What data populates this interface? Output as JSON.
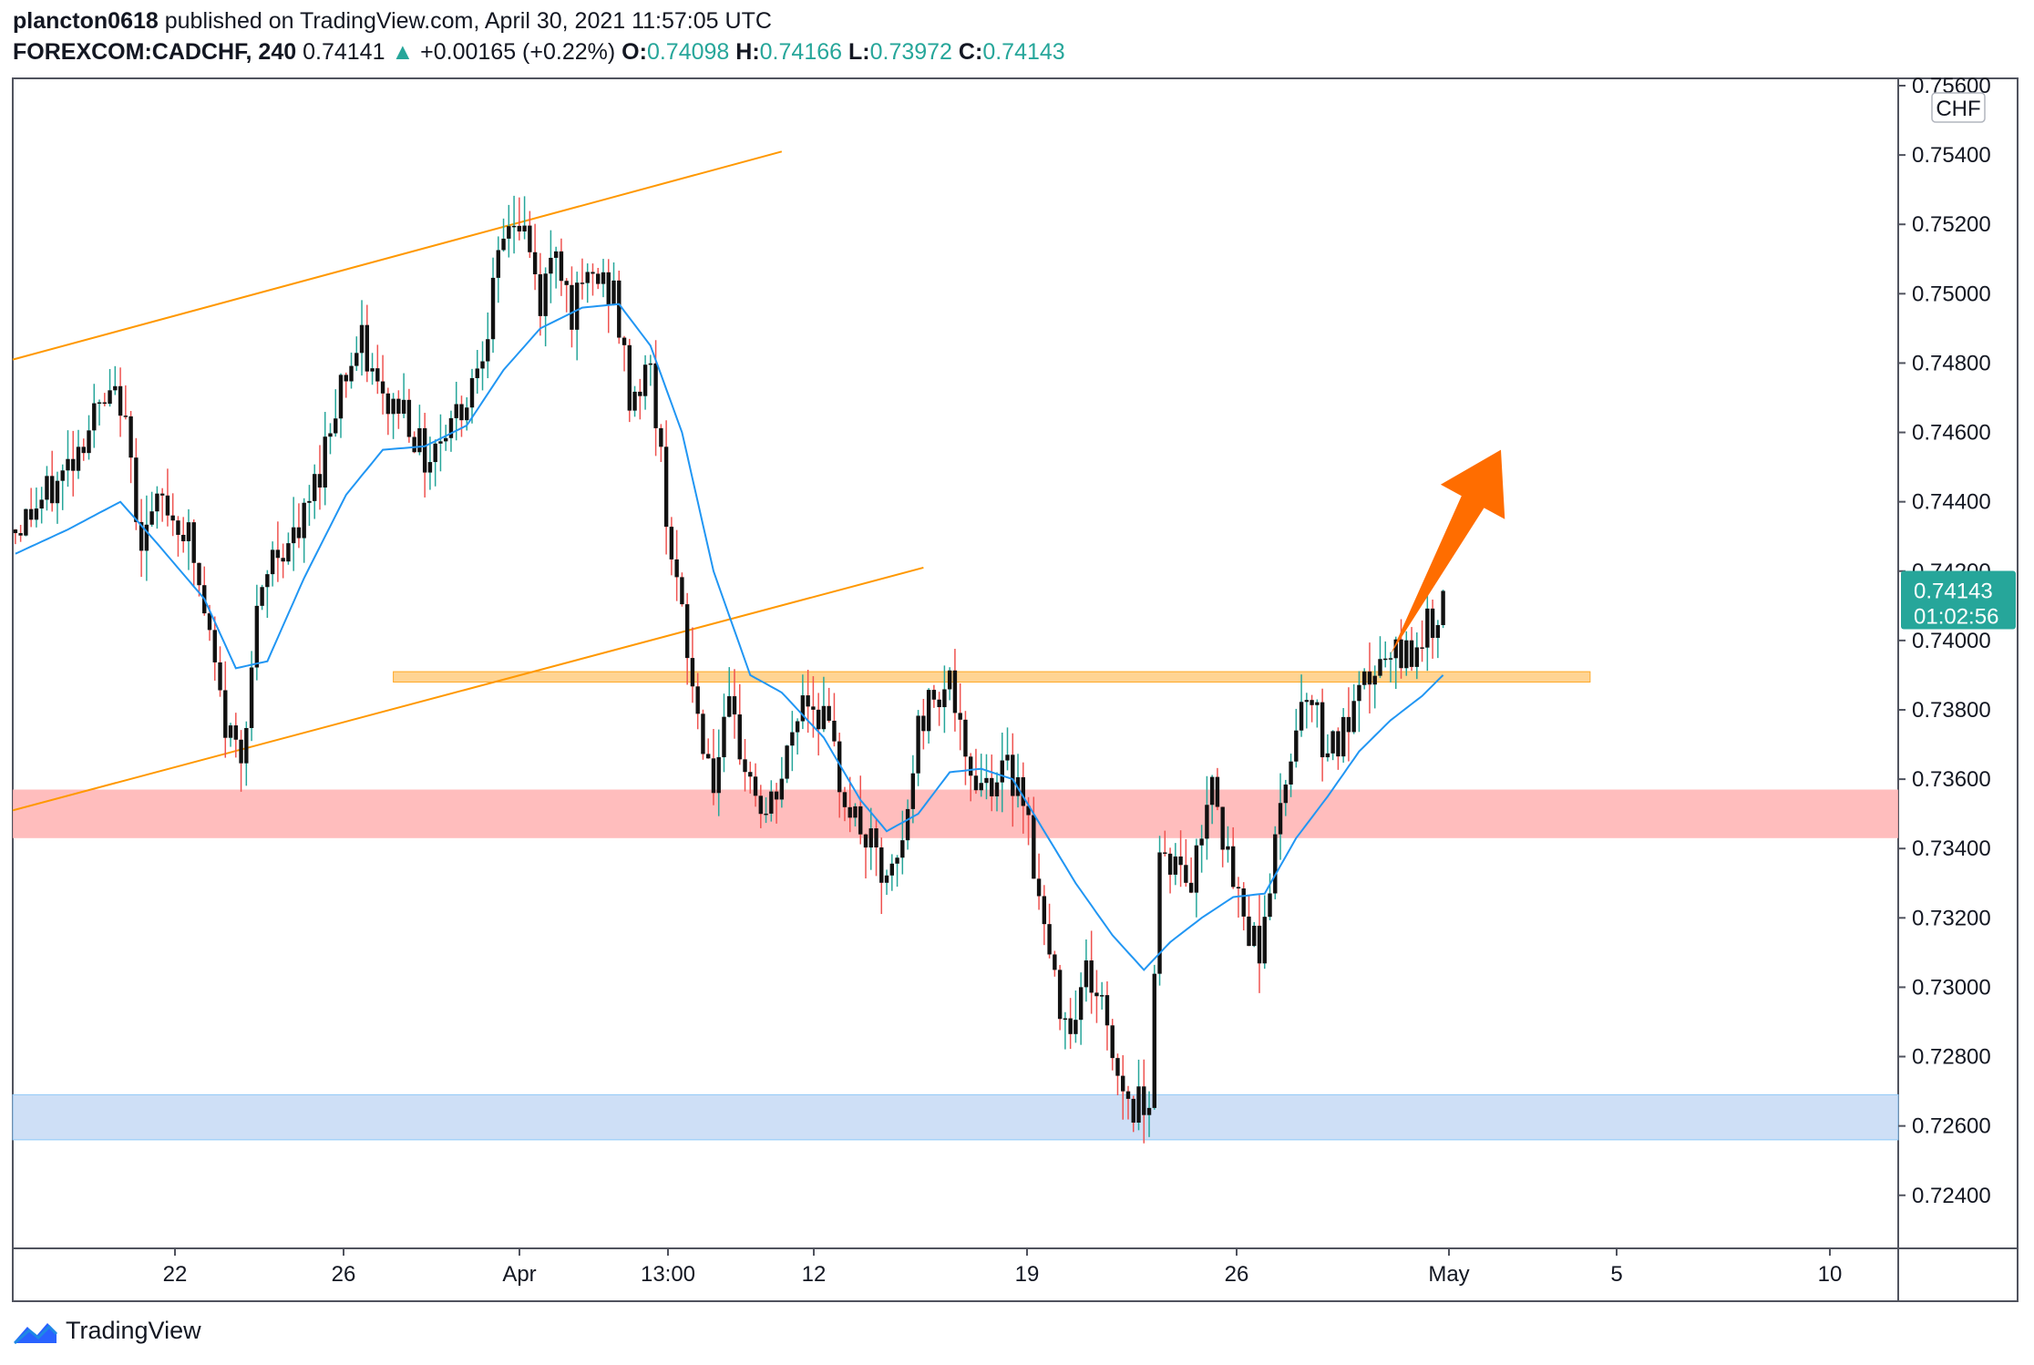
{
  "header": {
    "user": "plancton0618",
    "published": " published on TradingView.com, April 30, 2021 11:57:05 UTC",
    "symbol": "FOREXCOM:CADCHF, 240",
    "last": "0.74141",
    "change": "+0.00165 (+0.22%)",
    "o_label": "O:",
    "o_val": "0.74098",
    "h_label": "H:",
    "h_val": "0.74166",
    "l_label": "L:",
    "l_val": "0.73972",
    "c_label": "C:",
    "c_val": "0.74143"
  },
  "footer": {
    "brand": "TradingView"
  },
  "chart_data": {
    "type": "candlestick",
    "currency": "CHF",
    "ylim": [
      0.7231,
      0.756
    ],
    "y_ticks": [
      "0.75600",
      "0.75400",
      "0.75200",
      "0.75000",
      "0.74800",
      "0.74600",
      "0.74400",
      "0.74200",
      "0.74000",
      "0.73800",
      "0.73600",
      "0.73400",
      "0.73200",
      "0.73000",
      "0.72800",
      "0.72600",
      "0.72400"
    ],
    "x_ticks": [
      "22",
      "26",
      "Apr",
      "13:00",
      "12",
      "19",
      "26",
      "May",
      "5",
      "10"
    ],
    "price_label": "0.74143",
    "countdown": "01:02:56",
    "colors": {
      "up": "#26a69a",
      "down": "#ef5350",
      "ema": "#2196f3",
      "channel": "#ff9800",
      "arrow": "#ff6d00"
    },
    "anchors": [
      [
        0,
        0.7432
      ],
      [
        8,
        0.7445
      ],
      [
        15,
        0.7465
      ],
      [
        20,
        0.747
      ],
      [
        24,
        0.743
      ],
      [
        28,
        0.744
      ],
      [
        33,
        0.743
      ],
      [
        37,
        0.74
      ],
      [
        40,
        0.7375
      ],
      [
        43,
        0.7368
      ],
      [
        46,
        0.7405
      ],
      [
        49,
        0.7425
      ],
      [
        54,
        0.743
      ],
      [
        58,
        0.745
      ],
      [
        62,
        0.7475
      ],
      [
        66,
        0.7485
      ],
      [
        70,
        0.7468
      ],
      [
        74,
        0.7468
      ],
      [
        78,
        0.7452
      ],
      [
        82,
        0.7462
      ],
      [
        86,
        0.747
      ],
      [
        90,
        0.7492
      ],
      [
        94,
        0.7522
      ],
      [
        97,
        0.7518
      ],
      [
        100,
        0.7497
      ],
      [
        103,
        0.7515
      ],
      [
        106,
        0.7495
      ],
      [
        110,
        0.7505
      ],
      [
        114,
        0.75
      ],
      [
        117,
        0.747
      ],
      [
        121,
        0.7478
      ],
      [
        124,
        0.7438
      ],
      [
        127,
        0.7405
      ],
      [
        130,
        0.7378
      ],
      [
        133,
        0.736
      ],
      [
        136,
        0.7378
      ],
      [
        140,
        0.736
      ],
      [
        143,
        0.7348
      ],
      [
        146,
        0.736
      ],
      [
        150,
        0.7385
      ],
      [
        154,
        0.7378
      ],
      [
        157,
        0.736
      ],
      [
        160,
        0.7348
      ],
      [
        163,
        0.734
      ],
      [
        166,
        0.7328
      ],
      [
        169,
        0.734
      ],
      [
        172,
        0.7375
      ],
      [
        175,
        0.7385
      ],
      [
        178,
        0.739
      ],
      [
        181,
        0.7362
      ],
      [
        185,
        0.736
      ],
      [
        189,
        0.7362
      ],
      [
        192,
        0.7358
      ],
      [
        195,
        0.7325
      ],
      [
        198,
        0.73
      ],
      [
        201,
        0.729
      ],
      [
        204,
        0.7305
      ],
      [
        207,
        0.7295
      ],
      [
        210,
        0.7275
      ],
      [
        213,
        0.7265
      ],
      [
        216,
        0.727
      ],
      [
        218,
        0.734
      ],
      [
        221,
        0.7335
      ],
      [
        224,
        0.733
      ],
      [
        226,
        0.7345
      ],
      [
        228,
        0.7365
      ],
      [
        231,
        0.7335
      ],
      [
        234,
        0.732
      ],
      [
        237,
        0.7312
      ],
      [
        240,
        0.734
      ],
      [
        243,
        0.737
      ],
      [
        246,
        0.7388
      ],
      [
        249,
        0.7372
      ],
      [
        252,
        0.737
      ],
      [
        255,
        0.7378
      ],
      [
        258,
        0.739
      ],
      [
        261,
        0.7393
      ],
      [
        264,
        0.7395
      ],
      [
        267,
        0.74
      ],
      [
        270,
        0.7405
      ],
      [
        272,
        0.7414
      ]
    ],
    "ema_anchors": [
      [
        0,
        0.7425
      ],
      [
        10,
        0.7432
      ],
      [
        20,
        0.744
      ],
      [
        27,
        0.7428
      ],
      [
        36,
        0.7412
      ],
      [
        42,
        0.7392
      ],
      [
        48,
        0.7394
      ],
      [
        55,
        0.7418
      ],
      [
        63,
        0.7442
      ],
      [
        70,
        0.7455
      ],
      [
        78,
        0.7456
      ],
      [
        86,
        0.7462
      ],
      [
        93,
        0.7478
      ],
      [
        100,
        0.749
      ],
      [
        108,
        0.7496
      ],
      [
        115,
        0.7497
      ],
      [
        121,
        0.7485
      ],
      [
        127,
        0.746
      ],
      [
        133,
        0.742
      ],
      [
        140,
        0.739
      ],
      [
        146,
        0.7385
      ],
      [
        154,
        0.7372
      ],
      [
        161,
        0.7354
      ],
      [
        166,
        0.7345
      ],
      [
        172,
        0.735
      ],
      [
        178,
        0.7362
      ],
      [
        184,
        0.7363
      ],
      [
        190,
        0.736
      ],
      [
        196,
        0.7345
      ],
      [
        202,
        0.733
      ],
      [
        209,
        0.7315
      ],
      [
        215,
        0.7305
      ],
      [
        220,
        0.7313
      ],
      [
        226,
        0.732
      ],
      [
        232,
        0.7326
      ],
      [
        238,
        0.7327
      ],
      [
        244,
        0.7343
      ],
      [
        250,
        0.7355
      ],
      [
        256,
        0.7368
      ],
      [
        262,
        0.7377
      ],
      [
        268,
        0.7384
      ],
      [
        272,
        0.739
      ]
    ],
    "channel_lines": [
      {
        "x1": 0,
        "y1": 0.7481,
        "x2": 146,
        "y2": 0.7541
      },
      {
        "x1": 0,
        "y1": 0.7351,
        "x2": 173,
        "y2": 0.7421
      }
    ],
    "zones": [
      {
        "name": "resistance-zone",
        "x1": 72,
        "x2": 300,
        "y_top": 0.7391,
        "y_bottom": 0.7388,
        "color": "#ffcc80"
      },
      {
        "name": "support-zone-red",
        "x1": 0,
        "x2": null,
        "y_top": 0.7357,
        "y_bottom": 0.7343,
        "color": "#ffb2b2"
      },
      {
        "name": "support-zone-blue",
        "x1": 0,
        "x2": null,
        "y_top": 0.7269,
        "y_bottom": 0.7256,
        "color": "#c5d9f5"
      }
    ],
    "arrow": {
      "x1": 262,
      "y1": 0.7396,
      "x2": 283,
      "y2": 0.7455
    },
    "n_bars": 273
  }
}
